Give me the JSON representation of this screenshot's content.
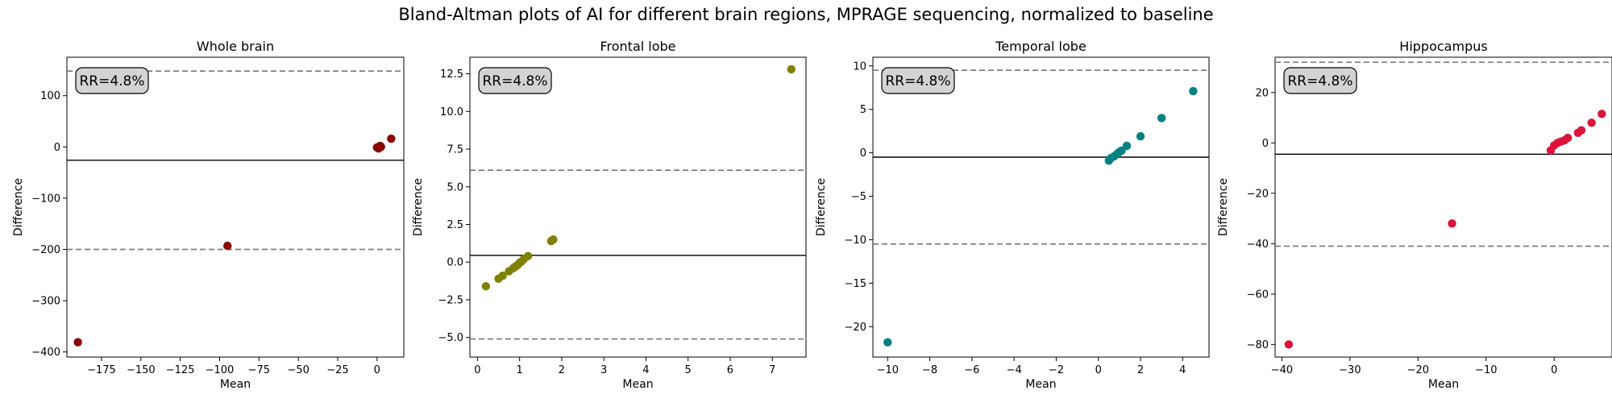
{
  "figure": {
    "title": "Bland-Altman plots of AI for different brain regions, MPRAGE sequencing, normalized to baseline"
  },
  "chart_data": [
    {
      "type": "scatter",
      "title": "Whole brain",
      "xlabel": "Mean",
      "ylabel": "Difference",
      "annotation": "RR=4.8%",
      "color": "#8b0000",
      "xlim": [
        -197,
        17
      ],
      "ylim": [
        -410,
        175
      ],
      "xticks": [
        -175,
        -150,
        -125,
        -100,
        -75,
        -50,
        -25,
        0
      ],
      "yticks": [
        -400,
        -300,
        -200,
        -100,
        0,
        100
      ],
      "mean_line": -26,
      "loa_upper": 148,
      "loa_lower": -200,
      "points": [
        [
          -190,
          -381
        ],
        [
          -95,
          -193
        ],
        [
          9,
          16
        ],
        [
          0.5,
          -2
        ],
        [
          1,
          0
        ],
        [
          1.5,
          1
        ],
        [
          2,
          2
        ],
        [
          0,
          -1
        ],
        [
          1,
          -3
        ],
        [
          2.5,
          0
        ]
      ]
    },
    {
      "type": "scatter",
      "title": "Frontal lobe",
      "xlabel": "Mean",
      "ylabel": "Difference",
      "annotation": "RR=4.8%",
      "color": "#808000",
      "xlim": [
        -0.18,
        7.8
      ],
      "ylim": [
        -6.3,
        13.6
      ],
      "xticks": [
        0,
        1,
        2,
        3,
        4,
        5,
        6,
        7
      ],
      "yticks": [
        -5.0,
        -2.5,
        0.0,
        2.5,
        5.0,
        7.5,
        10.0,
        12.5
      ],
      "tick_decimals": 1,
      "mean_line": 0.45,
      "loa_upper": 6.1,
      "loa_lower": -5.1,
      "points": [
        [
          0.2,
          -1.6
        ],
        [
          0.5,
          -1.1
        ],
        [
          0.6,
          -0.9
        ],
        [
          0.75,
          -0.6
        ],
        [
          0.85,
          -0.4
        ],
        [
          0.9,
          -0.3
        ],
        [
          0.95,
          -0.2
        ],
        [
          1.0,
          -0.05
        ],
        [
          1.05,
          0.05
        ],
        [
          1.1,
          0.2
        ],
        [
          1.2,
          0.4
        ],
        [
          1.75,
          1.4
        ],
        [
          1.8,
          1.5
        ],
        [
          7.45,
          12.8
        ]
      ]
    },
    {
      "type": "scatter",
      "title": "Temporal lobe",
      "xlabel": "Mean",
      "ylabel": "Difference",
      "annotation": "RR=4.8%",
      "color": "#008080",
      "xlim": [
        -10.7,
        5.25
      ],
      "ylim": [
        -23.5,
        11.0
      ],
      "xticks": [
        -10,
        -8,
        -6,
        -4,
        -2,
        0,
        2,
        4
      ],
      "yticks": [
        -20,
        -15,
        -10,
        -5,
        0,
        5,
        10
      ],
      "mean_line": -0.5,
      "loa_upper": 9.5,
      "loa_lower": -10.5,
      "points": [
        [
          -10,
          -21.8
        ],
        [
          0.5,
          -0.9
        ],
        [
          0.6,
          -0.6
        ],
        [
          0.75,
          -0.4
        ],
        [
          0.9,
          -0.1
        ],
        [
          1.0,
          0.1
        ],
        [
          1.1,
          0.25
        ],
        [
          1.35,
          0.8
        ],
        [
          2.0,
          1.9
        ],
        [
          3.0,
          4.0
        ],
        [
          4.5,
          7.1
        ]
      ]
    },
    {
      "type": "scatter",
      "title": "Hippocampus",
      "xlabel": "Mean",
      "ylabel": "Difference",
      "annotation": "RR=4.8%",
      "color": "#dc143c",
      "xlim": [
        -41,
        8.5
      ],
      "ylim": [
        -85,
        34
      ],
      "xticks": [
        -40,
        -30,
        -20,
        -10,
        0
      ],
      "yticks": [
        -80,
        -60,
        -40,
        -20,
        0,
        20
      ],
      "mean_line": -4.5,
      "loa_upper": 32,
      "loa_lower": -41,
      "points": [
        [
          -39,
          -80
        ],
        [
          -15,
          -32
        ],
        [
          -0.5,
          -3
        ],
        [
          0,
          -1
        ],
        [
          0.5,
          0
        ],
        [
          1,
          0.5
        ],
        [
          1.5,
          1
        ],
        [
          2,
          2
        ],
        [
          3.5,
          4
        ],
        [
          4,
          5
        ],
        [
          5.5,
          8
        ],
        [
          7,
          11.5
        ]
      ]
    }
  ]
}
